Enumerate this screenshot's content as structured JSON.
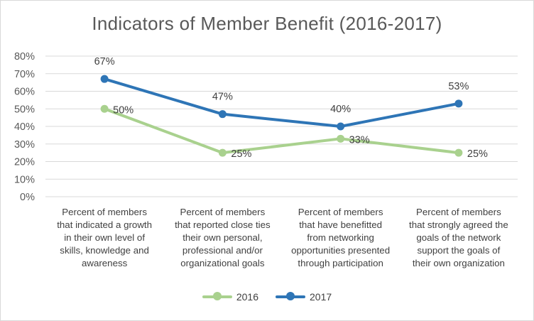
{
  "chart_data": {
    "type": "line",
    "title": "Indicators of Member Benefit (2016-2017)",
    "categories": [
      [
        "Percent of members",
        "that indicated a growth",
        "in their own level of",
        "skills, knowledge and",
        "awareness"
      ],
      [
        "Percent of members",
        "that reported close ties",
        "their own personal,",
        "professional and/or",
        "organizational goals"
      ],
      [
        "Percent of members",
        "that have benefitted",
        "from networking",
        "opportunities presented",
        "through participation"
      ],
      [
        "Percent of members",
        "that strongly agreed the",
        "goals of the network",
        "support the goals of",
        "their own organization"
      ]
    ],
    "ylim": [
      0,
      80
    ],
    "yticks": [
      0,
      10,
      20,
      30,
      40,
      50,
      60,
      70,
      80
    ],
    "ytick_labels": [
      "0%",
      "10%",
      "20%",
      "30%",
      "40%",
      "50%",
      "60%",
      "70%",
      "80%"
    ],
    "grid": true,
    "legend_position": "bottom",
    "series": [
      {
        "name": "2016",
        "color": "#a9d18e",
        "values": [
          50,
          25,
          33,
          25
        ],
        "labels": [
          "50%",
          "25%",
          "33%",
          "25%"
        ],
        "label_position": "right"
      },
      {
        "name": "2017",
        "color": "#2e75b6",
        "values": [
          67,
          47,
          40,
          53
        ],
        "labels": [
          "67%",
          "47%",
          "40%",
          "53%"
        ],
        "label_position": "above"
      }
    ]
  }
}
